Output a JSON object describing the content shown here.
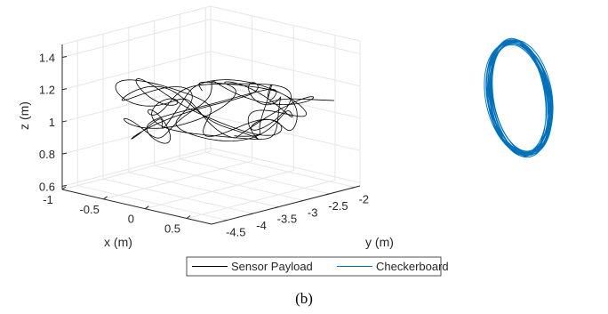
{
  "chart_data": {
    "type": "line",
    "projection": "3d",
    "xlabel": "x (m)",
    "ylabel": "y (m)",
    "zlabel": "z (m)",
    "x_ticks": [
      -1,
      -0.5,
      0,
      0.5
    ],
    "y_ticks": [
      -4.5,
      -4,
      -3.5,
      -3,
      -2.5,
      -2
    ],
    "z_ticks": [
      0.6,
      0.8,
      1,
      1.2,
      1.4
    ],
    "x_tick_labels": [
      "-1",
      "-0.5",
      "0",
      "0.5"
    ],
    "y_tick_labels": [
      "-4.5",
      "-4",
      "-3.5",
      "-3",
      "-2.5",
      "-2"
    ],
    "z_tick_labels": [
      "0.6",
      "0.8",
      "1",
      "1.2",
      "1.4"
    ],
    "xlim": [
      -1,
      0.8
    ],
    "ylim": [
      -4.8,
      -1.9
    ],
    "zlim": [
      0.58,
      1.48
    ],
    "grid": true,
    "legend_placement": "bottom-center",
    "caption": "(b)",
    "series": [
      {
        "name": "Sensor Payload",
        "color": "#000000"
      },
      {
        "name": "Checkerboard",
        "color": "#0072BD"
      }
    ]
  }
}
